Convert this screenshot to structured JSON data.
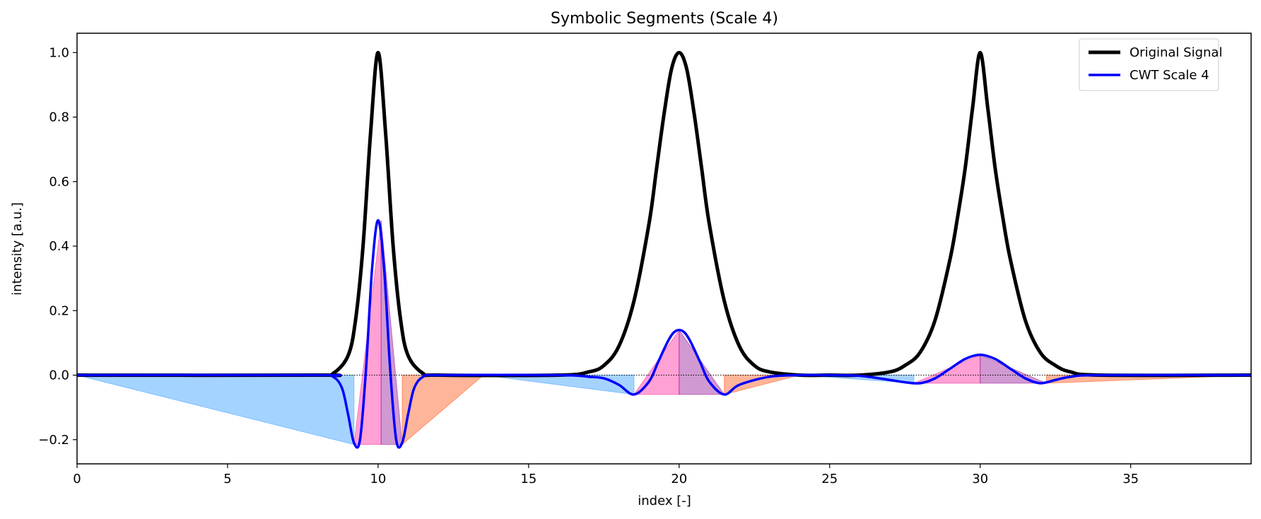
{
  "chart_data": {
    "type": "line",
    "title": "Symbolic Segments (Scale 4)",
    "xlabel": "index [-]",
    "ylabel": "intensity [a.u.]",
    "xlim": [
      0,
      39
    ],
    "ylim": [
      -0.275,
      1.06
    ],
    "x_ticks": [
      0,
      5,
      10,
      15,
      20,
      25,
      30,
      35
    ],
    "x_tick_labels": [
      "0",
      "5",
      "10",
      "15",
      "20",
      "25",
      "30",
      "35"
    ],
    "y_ticks": [
      -0.2,
      0.0,
      0.2,
      0.4,
      0.6,
      0.8,
      1.0
    ],
    "y_tick_labels": [
      "−0.2",
      "0.0",
      "0.2",
      "0.4",
      "0.6",
      "0.8",
      "1.0"
    ],
    "grid": false,
    "legend_position": "top-right",
    "series": [
      {
        "name": "Original Signal",
        "color": "#000000",
        "x": [
          0,
          8,
          8.5,
          9,
          9.25,
          9.5,
          9.75,
          10,
          10.25,
          10.5,
          10.75,
          11,
          11.5,
          12,
          16,
          17,
          17.5,
          18,
          18.5,
          19,
          19.25,
          19.5,
          19.75,
          20,
          20.25,
          20.5,
          20.75,
          21,
          21.5,
          22,
          22.5,
          23,
          24,
          25,
          26,
          27,
          27.5,
          28,
          28.5,
          29,
          29.25,
          29.5,
          29.75,
          30,
          30.25,
          30.5,
          30.75,
          31,
          31.5,
          32,
          32.5,
          33,
          34,
          39
        ],
        "y": [
          0.0,
          0.0,
          0.005,
          0.06,
          0.17,
          0.4,
          0.75,
          1.0,
          0.75,
          0.4,
          0.17,
          0.06,
          0.005,
          0.0,
          0.0,
          0.01,
          0.03,
          0.09,
          0.23,
          0.47,
          0.64,
          0.81,
          0.95,
          1.0,
          0.95,
          0.81,
          0.64,
          0.47,
          0.23,
          0.09,
          0.03,
          0.01,
          0.0,
          0.0,
          0.0,
          0.01,
          0.03,
          0.07,
          0.17,
          0.36,
          0.49,
          0.64,
          0.83,
          1.0,
          0.83,
          0.64,
          0.49,
          0.36,
          0.17,
          0.07,
          0.03,
          0.01,
          0.0,
          0.0
        ]
      },
      {
        "name": "CWT Scale 4",
        "color": "#0000ff",
        "x": [
          0,
          8,
          8.5,
          8.8,
          9.0,
          9.2,
          9.4,
          9.6,
          9.8,
          10.0,
          10.2,
          10.4,
          10.6,
          10.8,
          11.0,
          11.2,
          11.5,
          12,
          16,
          17,
          17.5,
          18,
          18.5,
          19,
          19.3,
          19.6,
          19.8,
          20,
          20.2,
          20.4,
          20.7,
          21,
          21.5,
          22,
          23,
          24,
          25,
          26,
          27,
          27.5,
          28,
          28.5,
          29,
          29.5,
          30,
          30.5,
          31,
          31.5,
          32,
          32.5,
          33,
          34,
          39
        ],
        "y": [
          0.0,
          0.0,
          -0.005,
          -0.04,
          -0.12,
          -0.21,
          -0.2,
          0.02,
          0.33,
          0.48,
          0.33,
          0.02,
          -0.2,
          -0.21,
          -0.12,
          -0.04,
          -0.005,
          0.0,
          0.0,
          -0.005,
          -0.01,
          -0.03,
          -0.06,
          -0.02,
          0.04,
          0.1,
          0.13,
          0.14,
          0.13,
          0.1,
          0.04,
          -0.02,
          -0.06,
          -0.03,
          -0.005,
          0.0,
          0.0,
          -0.002,
          -0.015,
          -0.022,
          -0.025,
          -0.01,
          0.02,
          0.05,
          0.063,
          0.05,
          0.02,
          -0.01,
          -0.025,
          -0.015,
          -0.005,
          0.0,
          0.0
        ]
      }
    ],
    "segments": [
      {
        "color": "#1e90ff",
        "points": [
          [
            0,
            0
          ],
          [
            9.2,
            -0.215
          ],
          [
            9.2,
            0
          ]
        ]
      },
      {
        "color": "#ff1493",
        "points": [
          [
            9.2,
            -0.215
          ],
          [
            10.1,
            0.48
          ],
          [
            10.1,
            -0.215
          ]
        ]
      },
      {
        "color": "#8b008b",
        "points": [
          [
            10.1,
            -0.215
          ],
          [
            10.1,
            0.48
          ],
          [
            10.8,
            -0.215
          ]
        ]
      },
      {
        "color": "#ff4500",
        "points": [
          [
            10.8,
            -0.215
          ],
          [
            10.8,
            0
          ],
          [
            13.5,
            0
          ]
        ]
      },
      {
        "color": "#1e90ff",
        "points": [
          [
            13.5,
            0
          ],
          [
            18.5,
            -0.06
          ],
          [
            18.5,
            0
          ]
        ]
      },
      {
        "color": "#ff1493",
        "points": [
          [
            18.5,
            -0.06
          ],
          [
            20.0,
            0.14
          ],
          [
            20.0,
            -0.06
          ]
        ]
      },
      {
        "color": "#8b008b",
        "points": [
          [
            20.0,
            -0.06
          ],
          [
            20.0,
            0.14
          ],
          [
            21.5,
            -0.06
          ]
        ]
      },
      {
        "color": "#ff4500",
        "points": [
          [
            21.5,
            -0.06
          ],
          [
            21.5,
            0
          ],
          [
            24.0,
            0
          ]
        ]
      },
      {
        "color": "#1e90ff",
        "points": [
          [
            24.0,
            0
          ],
          [
            27.8,
            -0.025
          ],
          [
            27.8,
            0
          ]
        ]
      },
      {
        "color": "#ff1493",
        "points": [
          [
            27.8,
            -0.025
          ],
          [
            30.0,
            0.063
          ],
          [
            30.0,
            -0.025
          ]
        ]
      },
      {
        "color": "#8b008b",
        "points": [
          [
            30.0,
            -0.025
          ],
          [
            30.0,
            0.063
          ],
          [
            32.2,
            -0.025
          ]
        ]
      },
      {
        "color": "#ff4500",
        "points": [
          [
            32.2,
            -0.025
          ],
          [
            32.2,
            0
          ],
          [
            39.0,
            0
          ]
        ]
      }
    ]
  }
}
